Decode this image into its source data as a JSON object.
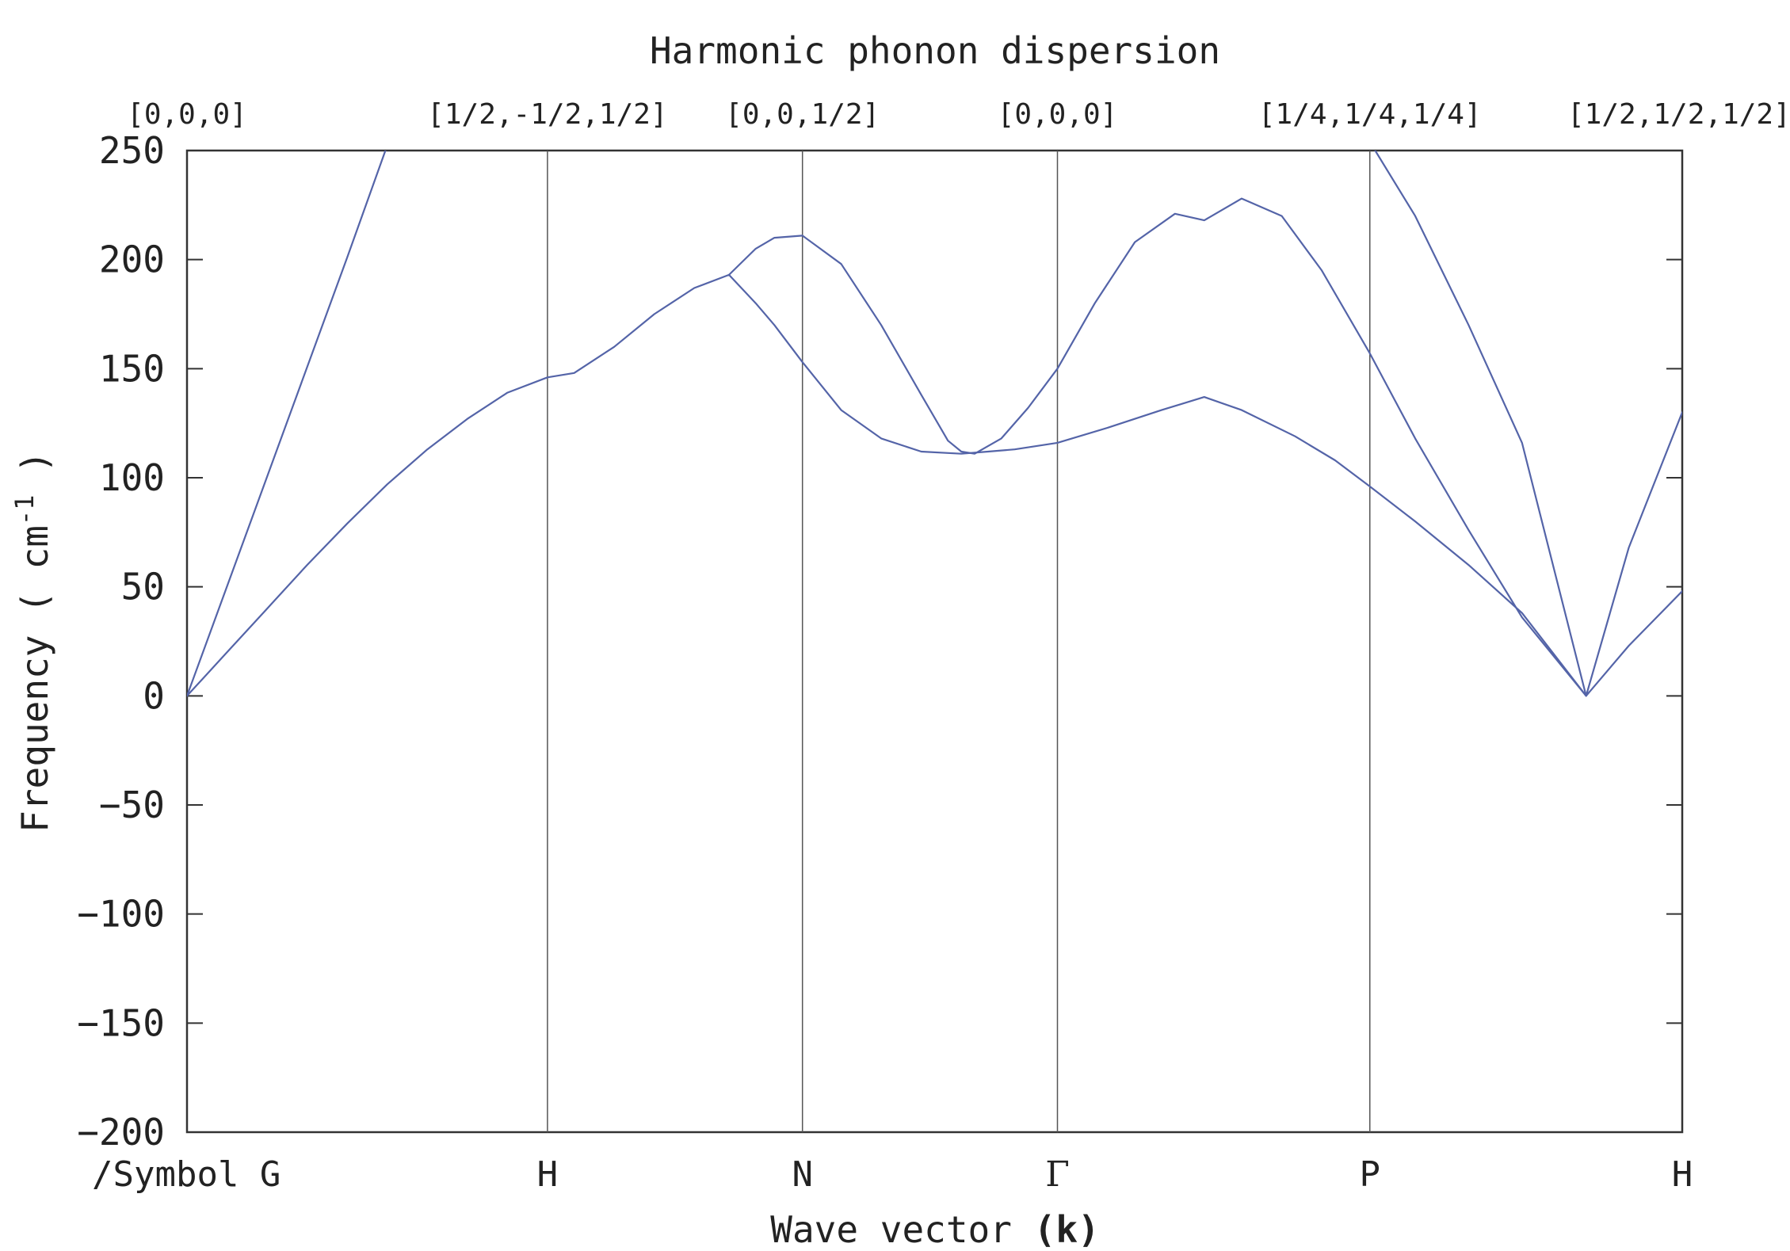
{
  "chart_data": {
    "type": "line",
    "title": "Harmonic phonon dispersion",
    "ylabel_main": "Frequency ( cm",
    "ylabel_sup": "-1",
    "ylabel_end": " )",
    "xlabel_main": "Wave vector ",
    "xlabel_bold": "(k)",
    "ylim": [
      -200,
      250
    ],
    "xlim": [
      0,
      5.6
    ],
    "yticks": [
      250,
      200,
      150,
      100,
      50,
      0,
      -50,
      -100,
      -150,
      -200
    ],
    "ytick_labels": [
      "250",
      "200",
      "150",
      "100",
      "50",
      "0",
      "−50",
      "−100",
      "−150",
      "−200"
    ],
    "grid": false,
    "line_color": "#5464a8",
    "special_points": [
      {
        "x": 0.0,
        "symbol": "/Symbol G",
        "qpoint": "[0,0,0]"
      },
      {
        "x": 1.35,
        "symbol": "H",
        "qpoint": "[1/2,-1/2,1/2]"
      },
      {
        "x": 2.305,
        "symbol": "N",
        "qpoint": "[0,0,1/2]"
      },
      {
        "x": 3.26,
        "symbol": "Γ",
        "qpoint": "[0,0,0]"
      },
      {
        "x": 4.43,
        "symbol": "P",
        "qpoint": "[1/4,1/4,1/4]"
      },
      {
        "x": 5.6,
        "symbol": "H",
        "qpoint": "[1/2,1/2,1/2]"
      }
    ],
    "series": [
      {
        "x": [
          0.0,
          0.15,
          0.3,
          0.45,
          0.6,
          0.75,
          0.9,
          1.05,
          1.2,
          1.35,
          1.45,
          1.6,
          1.75,
          1.9,
          2.03,
          2.13,
          2.2,
          2.305,
          2.45,
          2.6,
          2.75,
          2.9,
          3.0,
          3.1,
          3.26,
          3.45,
          3.65,
          3.81,
          3.95,
          4.15,
          4.3,
          4.43,
          4.6,
          4.8,
          5.0,
          5.24,
          5.4,
          5.6
        ],
        "y": [
          0,
          20,
          40,
          60,
          79,
          97,
          113,
          127,
          139,
          146,
          148,
          160,
          175,
          187,
          193,
          180,
          170,
          153,
          131,
          118,
          112,
          111,
          112,
          113,
          116,
          123,
          131,
          137,
          131,
          119,
          108,
          96,
          80,
          60,
          38,
          0,
          23,
          48
        ]
      },
      {
        "x": [
          2.03,
          2.13,
          2.2,
          2.305,
          2.45,
          2.6,
          2.75,
          2.85,
          2.9,
          2.95,
          3.05,
          3.15,
          3.26,
          3.4,
          3.55,
          3.7,
          3.81,
          3.95,
          4.1,
          4.25,
          4.43,
          4.6,
          4.8,
          5.0,
          5.24
        ],
        "y": [
          193,
          205,
          210,
          211,
          198,
          170,
          138,
          117,
          112,
          111,
          118,
          132,
          150,
          180,
          208,
          221,
          218,
          228,
          220,
          195,
          157,
          118,
          76,
          36,
          0
        ]
      },
      {
        "x": [
          0.0,
          0.2,
          0.4,
          0.6,
          0.743
        ],
        "y": [
          0,
          67,
          134,
          201,
          250
        ]
      },
      {
        "x": [
          4.45,
          4.6,
          4.8,
          5.0,
          5.24,
          5.4,
          5.6
        ],
        "y": [
          250,
          220,
          170,
          116,
          0,
          68,
          130
        ]
      }
    ]
  }
}
